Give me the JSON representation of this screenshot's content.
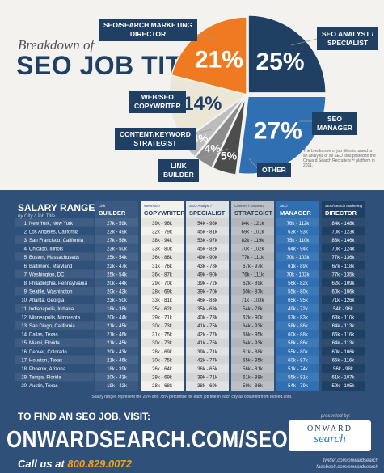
{
  "header": {
    "subtitle": "Breakdown of",
    "title": "SEO JOB TITLES"
  },
  "pie_labels": {
    "seo_director": [
      "SEO/SEARCH MARKETING",
      "DIRECTOR"
    ],
    "seo_analyst": [
      "SEO ANALYST /",
      "SPECIALIST"
    ],
    "web_copywriter": [
      "WEB/SEO",
      "COPYWRITER"
    ],
    "content_strategist": [
      "CONTENT/KEYWORD",
      "STRATEGIST"
    ],
    "link_builder": [
      "LINK",
      "BUILDER"
    ],
    "seo_manager": [
      "SEO",
      "MANAGER"
    ],
    "other": [
      "OTHER"
    ]
  },
  "pie_note": "The breakdown of job titles is based on an analysis of all SEO jobs posted to the Onward Search Recruiters™ platform in 2011.",
  "colors": {
    "navy": "#1f3f63",
    "orange": "#f07a22",
    "blue": "#2f6fb2",
    "cream": "#ece6d6",
    "gray1": "#bdbdbd",
    "gray2": "#8b8b8b",
    "gray3": "#4d4d4d",
    "table_bg": "#2f5078",
    "accent": "#f4a01c"
  },
  "chart_data": [
    {
      "type": "pie",
      "title": "SEO JOB TITLES",
      "slices": [
        {
          "label": "SEO/SEARCH MARKETING DIRECTOR",
          "value": 21,
          "value_label": "21%",
          "color": "#f07a22"
        },
        {
          "label": "SEO ANALYST / SPECIALIST",
          "value": 25,
          "value_label": "25%",
          "color": "#1f3f63"
        },
        {
          "label": "SEO MANAGER",
          "value": 27,
          "value_label": "27%",
          "color": "#2f6fb2"
        },
        {
          "label": "OTHER",
          "value": 5,
          "value_label": "5%",
          "color": "#4d4d4d"
        },
        {
          "label": "LINK BUILDER",
          "value": 4,
          "value_label": "4%",
          "color": "#8b8b8b"
        },
        {
          "label": "CONTENT/KEYWORD STRATEGIST",
          "value": 4,
          "value_label": "4%",
          "color": "#bdbdbd"
        },
        {
          "label": "WEB/SEO COPYWRITER",
          "value": 14,
          "value_label": "14%",
          "color": "#ece6d6"
        }
      ]
    },
    {
      "type": "table",
      "title": "SALARY RANGES",
      "subtitle": "by City / Job Title",
      "columns": [
        {
          "small": "Link",
          "name": "BUILDER"
        },
        {
          "small": "Web/SEO",
          "name": "COPYWRITER"
        },
        {
          "small": "SEO Analyst /",
          "name": "SPECIALIST"
        },
        {
          "small": "Content / Keyword",
          "name": "STRATEGIST"
        },
        {
          "small": "SEO",
          "name": "MANAGER"
        },
        {
          "small": "SEO/Search Marketing",
          "name": "DIRECTOR"
        }
      ],
      "rows": [
        {
          "n": "1",
          "city": "New York, New York",
          "values": [
            "27k - 59k",
            "39k - 96k",
            "54k - 98k",
            "84k - 121k",
            "76k - 112k",
            "84k - 148k"
          ]
        },
        {
          "n": "2",
          "city": "Los Angeles, California",
          "values": [
            "23k - 49k",
            "32k - 79k",
            "45k - 81k",
            "69k - 101k",
            "63k - 93k",
            "70k - 123k"
          ]
        },
        {
          "n": "3",
          "city": "San Francisco, California",
          "values": [
            "27k - 58k",
            "38k - 94k",
            "53k - 97k",
            "82k - 119k",
            "75k - 110k",
            "83k - 146k"
          ]
        },
        {
          "n": "4",
          "city": "Chicago, Illinois",
          "values": [
            "23k - 50k",
            "33k - 80k",
            "45k - 82k",
            "70k - 102k",
            "64k - 94k",
            "70k - 124k"
          ]
        },
        {
          "n": "5",
          "city": "Boston, Massachusetts",
          "values": [
            "25k - 54k",
            "36k - 88k",
            "49k - 90k",
            "77k - 111k",
            "70k - 103k",
            "77k - 136k"
          ]
        },
        {
          "n": "6",
          "city": "Baltimore, Maryland",
          "values": [
            "22k - 47k",
            "31k - 76k",
            "43k - 78k",
            "67k - 97k",
            "61k - 89k",
            "67k - 118k"
          ]
        },
        {
          "n": "7",
          "city": "Washington, DC",
          "values": [
            "25k - 54k",
            "36k - 87k",
            "49k - 90k",
            "76k - 111k",
            "70k - 102k",
            "77k - 135k"
          ]
        },
        {
          "n": "8",
          "city": "Philadelphia, Pennsylvania",
          "values": [
            "20k - 44k",
            "29k - 70k",
            "39k - 72k",
            "62k - 89k",
            "56k - 82k",
            "62k - 109k"
          ]
        },
        {
          "n": "9",
          "city": "Seattle, Washington",
          "values": [
            "20k - 42k",
            "28k - 69k",
            "39k - 70k",
            "60k - 87k",
            "55k - 80k",
            "60k - 106k"
          ]
        },
        {
          "n": "10",
          "city": "Atlanta, Georgia",
          "values": [
            "23k - 50k",
            "33k - 81k",
            "46k - 83k",
            "71k - 103k",
            "65k - 95k",
            "71k - 126k"
          ]
        },
        {
          "n": "11",
          "city": "Indianapolis, Indiana",
          "values": [
            "18k - 38k",
            "25k - 62k",
            "35k - 63k",
            "54k - 78k",
            "49k - 72k",
            "54k - 96k"
          ]
        },
        {
          "n": "12",
          "city": "Minneapolis, Minnesota",
          "values": [
            "20k - 44k",
            "29k - 71k",
            "40k - 73k",
            "62k - 90k",
            "57k - 83k",
            "63k - 110k"
          ]
        },
        {
          "n": "13",
          "city": "San Diego, California",
          "values": [
            "21k - 45k",
            "30k - 73k",
            "41k - 75k",
            "64k - 93k",
            "58k - 86k",
            "64k - 113k"
          ]
        },
        {
          "n": "14",
          "city": "Dallas, Texas",
          "values": [
            "21k - 46k",
            "31k - 75k",
            "42k - 77k",
            "66k - 95k",
            "60k - 88k",
            "66k - 116k"
          ]
        },
        {
          "n": "15",
          "city": "Miami, Florida",
          "values": [
            "21k - 45k",
            "30k - 73k",
            "41k - 75k",
            "64k - 93k",
            "58k - 86k",
            "64k - 113k"
          ]
        },
        {
          "n": "16",
          "city": "Denver, Colorado",
          "values": [
            "20k - 43k",
            "28k - 69k",
            "39k - 71k",
            "61k - 88k",
            "55k - 80k",
            "60k - 106k"
          ]
        },
        {
          "n": "17",
          "city": "Houston, Texas",
          "values": [
            "21k - 46k",
            "30k - 75k",
            "42k - 77k",
            "65k - 95k",
            "60k - 87k",
            "65k - 116k"
          ]
        },
        {
          "n": "18",
          "city": "Phoenix, Arizona",
          "values": [
            "18k - 39k",
            "26k - 64k",
            "36k - 65k",
            "56k - 81k",
            "51k - 74k",
            "56k - 98k"
          ]
        },
        {
          "n": "19",
          "city": "Tampa, Florida",
          "values": [
            "20k - 43k",
            "28k - 69k",
            "39k - 71k",
            "61k - 88k",
            "55k - 81k",
            "61k - 107k"
          ]
        },
        {
          "n": "20",
          "city": "Austin, Texas",
          "values": [
            "19k - 42k",
            "28k - 68k",
            "38k - 69k",
            "59k - 86k",
            "54k - 79k",
            "59k - 105k"
          ]
        }
      ]
    }
  ],
  "footer": {
    "footnote": "Salary ranges represent the 25% and 75% percentile for each job title in each city as obtained from Indeed.com.",
    "find_text": "TO FIND AN SEO JOB, VISIT:",
    "url": "ONWARDSEARCH.COM/SEO-JOBS",
    "call_text": "Call us at",
    "phone": "800.829.0072",
    "presented_by": "presented by:",
    "logo_top": "ONWARD",
    "logo_bottom": "search",
    "twitter": "twitter.com/onwardsearch",
    "facebook": "facebook.com/onwardsearch"
  }
}
